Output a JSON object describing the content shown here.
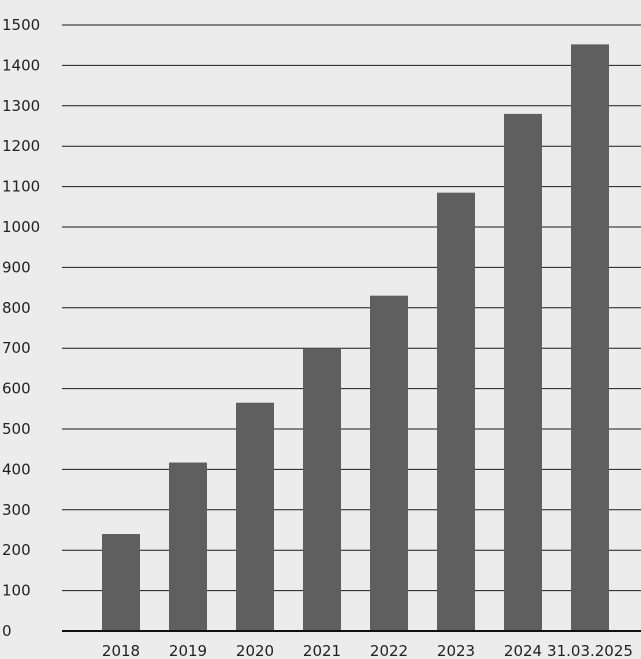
{
  "chart_data": {
    "type": "bar",
    "categories": [
      "2018",
      "2019",
      "2020",
      "2021",
      "2022",
      "2023",
      "2024",
      "31.03.2025"
    ],
    "values": [
      240,
      417,
      565,
      700,
      830,
      1085,
      1280,
      1452
    ],
    "ylim": [
      0,
      1500
    ],
    "yticks": [
      "0",
      "100",
      "200",
      "300",
      "400",
      "500",
      "600",
      "700",
      "800",
      "900",
      "1000",
      "1100",
      "1200",
      "1300",
      "1400",
      "1500"
    ],
    "grid": true,
    "legend": "none",
    "colors": {
      "bar": "#5f5f5f",
      "grid": "#1a1a1a",
      "background": "#ececec"
    }
  }
}
